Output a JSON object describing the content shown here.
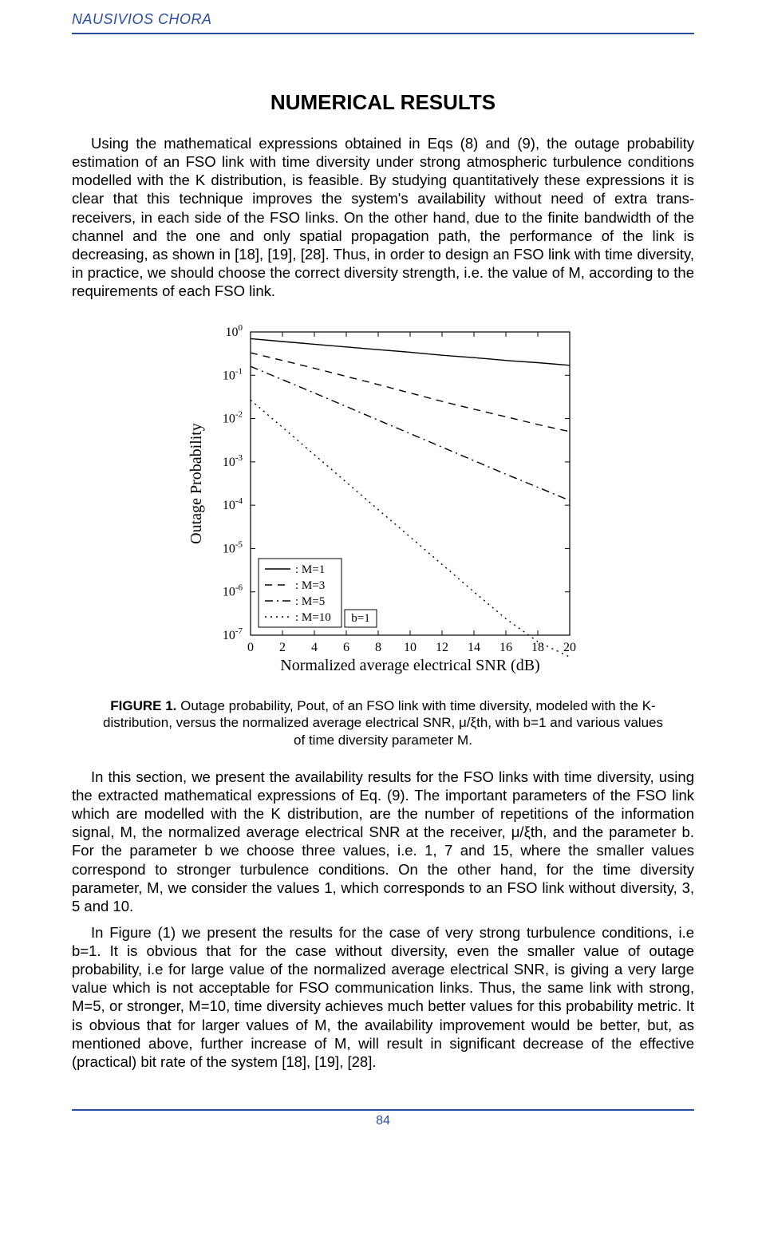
{
  "running_header": "NAUSIVIOS CHORA",
  "section_title": "NUMERICAL RESULTS",
  "paragraphs": {
    "p1": "Using the mathematical expressions obtained in Eqs (8) and (9), the outage probability estimation of an FSO link with time diversity under strong atmospheric turbulence conditions modelled with the K distribution, is feasible. By studying quantitatively these expressions it is clear that this technique improves the system's availability without need of extra trans-receivers, in each side of the FSO links. On the other hand, due to the finite bandwidth of the channel and the one and only spatial propagation path, the performance of the link is decreasing, as shown in [18], [19], [28]. Thus, in order to design an FSO link with time diversity, in practice, we should choose the correct diversity strength, i.e. the value of M, according to the requirements of each FSO link.",
    "p2": "In this section, we present the availability results for the FSO links with time diversity, using the extracted mathematical expressions of Eq. (9). The important parameters of the FSO link which are modelled with the K distribution, are the number of repetitions of the information signal, M, the normalized average electrical SNR at the receiver, μ/ξth, and the parameter b. For the parameter b we choose three values, i.e. 1, 7 and 15, where the smaller values correspond to stronger turbulence conditions. On the other hand, for the time diversity parameter, M, we consider the values 1, which corresponds to an FSO link without diversity, 3, 5 and 10.",
    "p3": "In Figure (1) we present the results for the case of very strong turbulence conditions, i.e b=1. It is obvious that for the case without diversity, even the smaller value of outage probability, i.e for large value of the normalized average electrical SNR, is giving a very large value which is not acceptable for FSO communication links. Thus, the same link with strong, M=5, or stronger, M=10, time diversity achieves much better values for this probability metric. It is obvious that for larger values of M, the availability improvement would be better, but, as mentioned above, further increase of M, will result in significant decrease of the effective (practical) bit rate of the system [18], [19], [28]."
  },
  "figure1": {
    "type": "line",
    "x_label": "Normalized average electrical SNR (dB)",
    "y_label": "Outage Probability",
    "xlim": [
      0,
      20
    ],
    "x_ticks": [
      0,
      2,
      4,
      6,
      8,
      10,
      12,
      14,
      16,
      18,
      20
    ],
    "y_log_exponents": [
      -7,
      -6,
      -5,
      -4,
      -3,
      -2,
      -1,
      0
    ],
    "label_fontsize": 20,
    "tick_fontsize": 16,
    "background_color": "#ffffff",
    "axis_color": "#000000",
    "grid": false,
    "line_color": "#000000",
    "line_width": 1.4,
    "legend_box_stroke": "#000000",
    "legend_items": [
      {
        "label": ": M=1",
        "dash": "solid"
      },
      {
        "label": ": M=3",
        "dash": "dash"
      },
      {
        "label": ": M=5",
        "dash": "dashdot"
      },
      {
        "label": ": M=10",
        "dash": "dot"
      }
    ],
    "legend_side_label": "b=1",
    "series": {
      "M1": {
        "dash": "solid",
        "points": [
          [
            0,
            0.7
          ],
          [
            2,
            0.6
          ],
          [
            4,
            0.52
          ],
          [
            6,
            0.45
          ],
          [
            8,
            0.39
          ],
          [
            10,
            0.34
          ],
          [
            12,
            0.29
          ],
          [
            14,
            0.255
          ],
          [
            16,
            0.22
          ],
          [
            18,
            0.195
          ],
          [
            20,
            0.17
          ]
        ]
      },
      "M3": {
        "dash": "dash",
        "points": [
          [
            0,
            0.33
          ],
          [
            2,
            0.22
          ],
          [
            4,
            0.145
          ],
          [
            6,
            0.094
          ],
          [
            8,
            0.061
          ],
          [
            10,
            0.039
          ],
          [
            12,
            0.025
          ],
          [
            14,
            0.0165
          ],
          [
            16,
            0.011
          ],
          [
            18,
            0.0073
          ],
          [
            20,
            0.005
          ]
        ]
      },
      "M5": {
        "dash": "dashdot",
        "points": [
          [
            0,
            0.16
          ],
          [
            2,
            0.079
          ],
          [
            4,
            0.039
          ],
          [
            6,
            0.019
          ],
          [
            8,
            0.0092
          ],
          [
            10,
            0.0045
          ],
          [
            12,
            0.0022
          ],
          [
            14,
            0.00107
          ],
          [
            16,
            0.00052
          ],
          [
            18,
            0.00026
          ],
          [
            20,
            0.000128
          ]
        ]
      },
      "M10": {
        "dash": "dot",
        "points": [
          [
            0,
            0.027
          ],
          [
            2,
            0.0063
          ],
          [
            4,
            0.00147
          ],
          [
            6,
            0.00034
          ],
          [
            8,
            7.9e-05
          ],
          [
            10,
            1.85e-05
          ],
          [
            12,
            4.3e-06
          ],
          [
            14,
            1e-06
          ],
          [
            16,
            2.4e-07
          ],
          [
            18,
            7.07e-08
          ],
          [
            20,
            3.16e-08
          ]
        ]
      }
    }
  },
  "figure1_caption_lead": "FIGURE 1.",
  "figure1_caption": " Outage probability, Pout, of an FSO link with time diversity, modeled with the K-distribution, versus the normalized average electrical SNR, μ/ξth, with b=1 and various values of time diversity parameter M.",
  "page_number": "84"
}
